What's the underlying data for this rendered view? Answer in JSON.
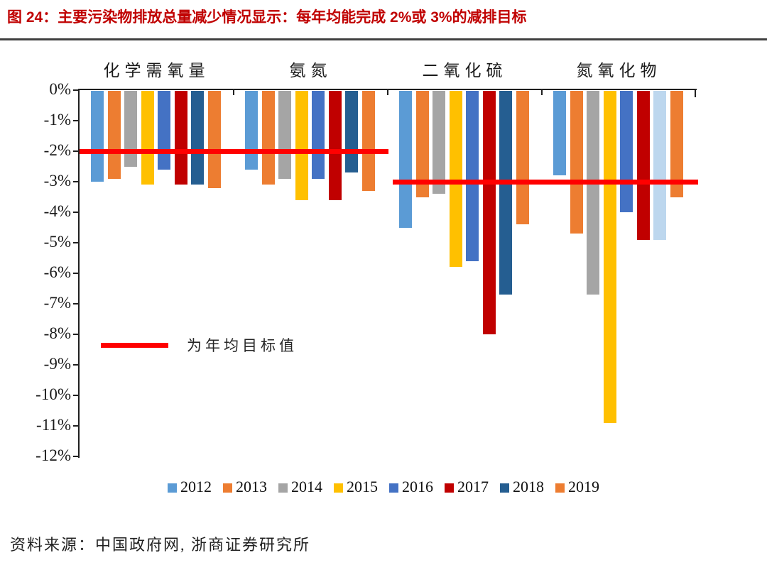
{
  "header": {
    "title": "图 24：主要污染物排放总量减少情况显示：每年均能完成 2%或 3%的减排目标",
    "title_color": "#C00000"
  },
  "annotation": {
    "target_line_label": "为年均目标值"
  },
  "source": {
    "label": "资料来源：中国政府网, 浙商证券研究所"
  },
  "colors": {
    "target_line": "#FF0000",
    "axis": "#1f1f1f",
    "separator": "#404040"
  },
  "chart_data": {
    "type": "bar",
    "title": "",
    "xlabel": "",
    "ylabel": "",
    "ylim": [
      0,
      -12
    ],
    "grid": false,
    "legend_position": "bottom",
    "yticks": [
      "0%",
      "-1%",
      "-2%",
      "-3%",
      "-4%",
      "-5%",
      "-6%",
      "-7%",
      "-8%",
      "-9%",
      "-10%",
      "-11%",
      "-12%"
    ],
    "categories": [
      "化学需氧量",
      "氨氮",
      "二氧化硫",
      "氮氧化物"
    ],
    "series": [
      {
        "name": "2012",
        "color": "#5B9BD5",
        "values": [
          -3.0,
          -2.6,
          -4.5,
          -2.8
        ]
      },
      {
        "name": "2013",
        "color": "#ED7D31",
        "values": [
          -2.9,
          -3.1,
          -3.5,
          -4.7
        ]
      },
      {
        "name": "2014",
        "color": "#A5A5A5",
        "values": [
          -2.5,
          -2.9,
          -3.4,
          -6.7
        ]
      },
      {
        "name": "2015",
        "color": "#FFC000",
        "values": [
          -3.1,
          -3.6,
          -5.8,
          -10.9
        ]
      },
      {
        "name": "2016",
        "color": "#4472C4",
        "values": [
          -2.6,
          -2.9,
          -5.6,
          -4.0
        ]
      },
      {
        "name": "2017",
        "color": "#C00000",
        "values": [
          -3.1,
          -3.6,
          -8.0,
          -4.9
        ]
      },
      {
        "name": "2018",
        "color": "#255E91",
        "values": [
          -3.1,
          -2.7,
          -6.7,
          -4.9
        ],
        "per_category_colors": [
          null,
          null,
          null,
          "#BDD7EE"
        ]
      },
      {
        "name": "2019",
        "color": "#ED7D31",
        "values": [
          -3.2,
          -3.3,
          -4.4,
          -3.5
        ]
      }
    ],
    "target_lines": [
      {
        "value": -2,
        "span": [
          0,
          1
        ],
        "color": "#FF0000"
      },
      {
        "value": -3,
        "span": [
          2,
          3
        ],
        "color": "#FF0000"
      }
    ]
  }
}
